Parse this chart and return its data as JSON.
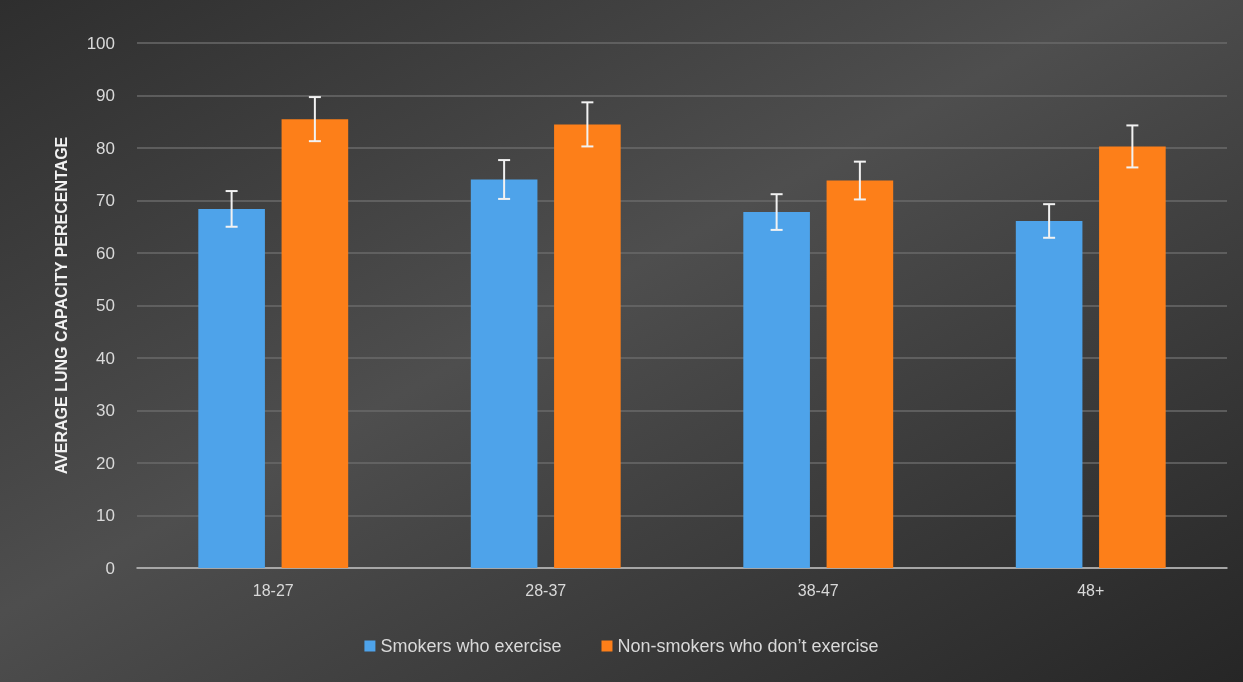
{
  "chart_data": {
    "type": "bar",
    "ylabel": "AVERAGE LUNG CAPACITY PERECENTAGE",
    "categories": [
      "18-27",
      "28-37",
      "38-47",
      "48+"
    ],
    "series": [
      {
        "name": "Smokers who exercise",
        "color": "#4ea3ea",
        "values": [
          68.4,
          74.0,
          67.8,
          66.1
        ],
        "errors": [
          3.4,
          3.7,
          3.4,
          3.2
        ]
      },
      {
        "name": "Non-smokers who don’t exercise",
        "color": "#fd7f19",
        "values": [
          85.5,
          84.5,
          73.8,
          80.3
        ],
        "errors": [
          4.2,
          4.2,
          3.6,
          4.0
        ]
      }
    ],
    "ylim": [
      0,
      100
    ],
    "yticks": [
      0,
      10,
      20,
      30,
      40,
      50,
      60,
      70,
      80,
      90,
      100
    ],
    "grid": "y",
    "legend": "bottom"
  }
}
